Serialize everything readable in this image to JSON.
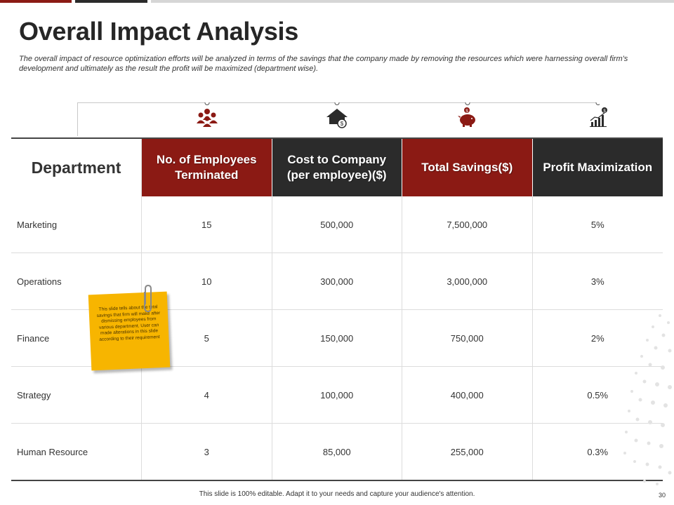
{
  "title": "Overall Impact Analysis",
  "subtitle": "The overall impact of resource optimization efforts will be analyzed in terms of the savings that the company made by removing the resources which were harnessing overall firm's development and ultimately as the result the profit will be maximized (department wise).",
  "icons": {
    "col1": "people-icon",
    "col2": "house-dollar-icon",
    "col3": "piggy-bank-icon",
    "col4": "growth-chart-icon"
  },
  "table": {
    "headers": {
      "department": "Department",
      "employees": "No. of Employees Terminated",
      "cost": "Cost to Company (per employee)($)",
      "savings": "Total Savings($)",
      "profit": "Profit Maximization"
    },
    "rows": [
      {
        "department": "Marketing",
        "employees": "15",
        "cost": "500,000",
        "savings": "7,500,000",
        "profit": "5%"
      },
      {
        "department": "Operations",
        "employees": "10",
        "cost": "300,000",
        "savings": "3,000,000",
        "profit": "3%"
      },
      {
        "department": "Finance",
        "employees": "5",
        "cost": "150,000",
        "savings": "750,000",
        "profit": "2%"
      },
      {
        "department": "Strategy",
        "employees": "4",
        "cost": "100,000",
        "savings": "400,000",
        "profit": "0.5%"
      },
      {
        "department": "Human Resource",
        "employees": "3",
        "cost": "85,000",
        "savings": "255,000",
        "profit": "0.3%"
      }
    ]
  },
  "sticky_note": "This slide tells about the total savings that firm will make after dismissing employees from various department. User can made alterations in this slide according to their requirement",
  "footer": "This slide is 100% editable. Adapt it to your needs and capture your audience's attention.",
  "page_number": "30",
  "colors": {
    "accent_red": "#8b1a14",
    "accent_dark": "#2b2b2b",
    "note_yellow": "#f7b500"
  }
}
